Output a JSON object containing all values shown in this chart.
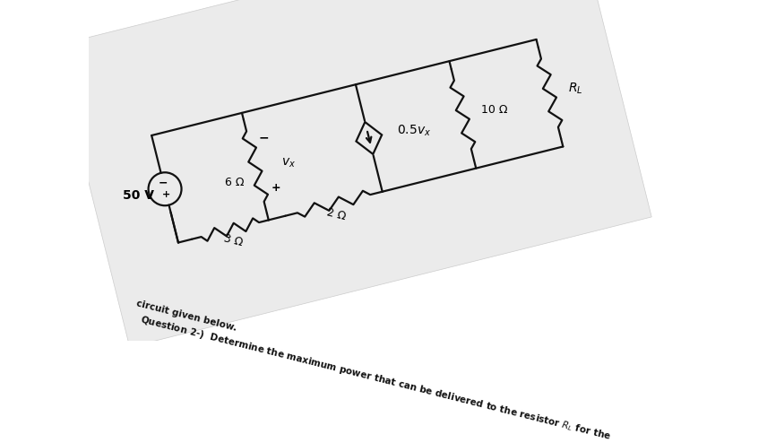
{
  "bg_color": "#ffffff",
  "paper_color": "#e8e8e8",
  "paper_shadow": "#bbbbbb",
  "wire_color": "#111111",
  "component_color": "#111111",
  "text_color": "#111111",
  "lw": 1.6,
  "rotation_deg": -14,
  "title_line1": "Question 2-) Determine the maximum power that can be delivered to the resistor $R_L$ for the",
  "title_line2": "circuit given below.",
  "vs_label": "50 V",
  "r1_label": "3 Ω",
  "r2_label": "2 Ω",
  "r3_label": "6 Ω",
  "vx_label": "v_x",
  "cs_label": "0.5v_x",
  "r4_label": "10 Ω",
  "rl_label": "R_L"
}
